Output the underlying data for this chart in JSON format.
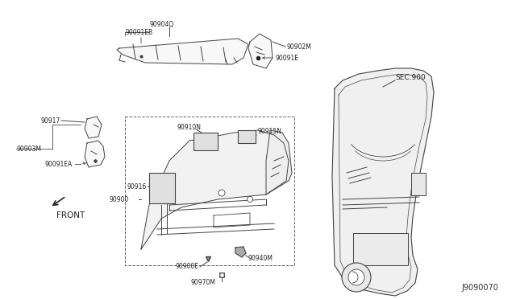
{
  "background_color": "#ffffff",
  "diagram_id": "J9090070",
  "sec_label": "SEC.900",
  "front_label": "FRONT",
  "line_color": "#444444",
  "fill_color": "#f8f8f8",
  "label_fontsize": 5.5,
  "diagram_fontsize": 7.0
}
